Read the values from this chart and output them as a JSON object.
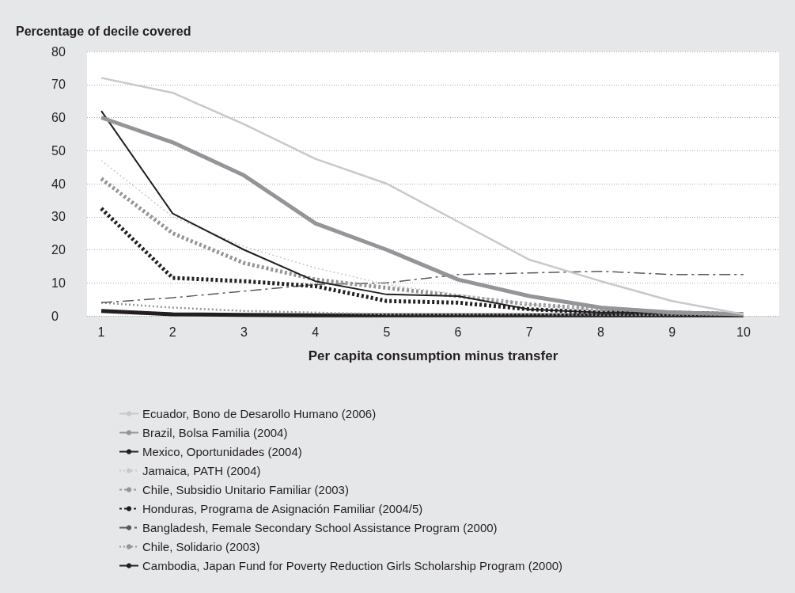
{
  "chart_data": {
    "type": "line",
    "ylabel": "Percentage of decile covered",
    "xlabel": "Per capita consumption minus transfer",
    "x": [
      1,
      2,
      3,
      4,
      5,
      6,
      7,
      8,
      9,
      10
    ],
    "xlim": [
      0.8,
      10.5
    ],
    "xticks": [
      1,
      2,
      3,
      4,
      5,
      6,
      7,
      8,
      9,
      10
    ],
    "ylim": [
      0,
      80
    ],
    "yticks": [
      0,
      10,
      20,
      30,
      40,
      50,
      60,
      70,
      80
    ],
    "grid": "y",
    "legend": "bottom",
    "marker": "none",
    "series": [
      {
        "name": "Ecuador, Bono de Desarollo Humano (2006)",
        "color": "#c8c9cb",
        "line_style": "solid",
        "values": [
          72,
          67.5,
          58,
          47.5,
          40,
          28.5,
          17,
          10.5,
          4.5,
          0.5
        ]
      },
      {
        "name": "Brazil, Bolsa Familia (2004)",
        "color": "#939598",
        "line_style": "solid",
        "values": [
          60,
          52.5,
          42.5,
          28,
          20,
          11,
          6,
          2.5,
          1,
          0.5
        ]
      },
      {
        "name": "Mexico, Oportunidades (2004)",
        "color": "#231f20",
        "line_style": "solid",
        "values": [
          62,
          31,
          20,
          10.5,
          6.5,
          6,
          2,
          1,
          1,
          0.5
        ]
      },
      {
        "name": "Jamaica, PATH (2004)",
        "color": "#c8c9cb",
        "line_style": "dotted",
        "values": [
          47,
          30,
          21,
          14.5,
          9.5,
          6.5,
          3.5,
          2,
          1,
          0.5
        ]
      },
      {
        "name": "Chile, Subsidio Unitario Familiar (2003)",
        "color": "#939598",
        "line_style": "dotted",
        "values": [
          41.5,
          25,
          16,
          11,
          8.5,
          6,
          3.5,
          2,
          1,
          0.5
        ]
      },
      {
        "name": "Honduras, Programa de Asignación Familiar (2004/5)",
        "color": "#231f20",
        "line_style": "dotted",
        "values": [
          32.5,
          11.5,
          10.5,
          9,
          4.5,
          4,
          2,
          1,
          1,
          0.5
        ]
      },
      {
        "name": "Bangladesh, Female Secondary School Assistance Program (2000)",
        "color": "#58595b",
        "line_style": "dashed",
        "values": [
          4,
          5.5,
          7.5,
          9.5,
          10,
          12.5,
          13,
          13.5,
          12.5,
          12.5
        ]
      },
      {
        "name": "Chile, Solidario (2003)",
        "color": "#939598",
        "line_style": "dotted",
        "values": [
          4,
          2.5,
          1.5,
          1,
          0.5,
          0.5,
          0.5,
          0.3,
          0.3,
          0.3
        ]
      },
      {
        "name": "Cambodia, Japan Fund for Poverty Reduction Girls Scholarship Program (2000)",
        "color": "#231f20",
        "line_style": "solid",
        "values": [
          1.5,
          0.5,
          0.3,
          0.2,
          0.2,
          0.2,
          0.2,
          0.2,
          0.2,
          0.2
        ]
      }
    ]
  }
}
